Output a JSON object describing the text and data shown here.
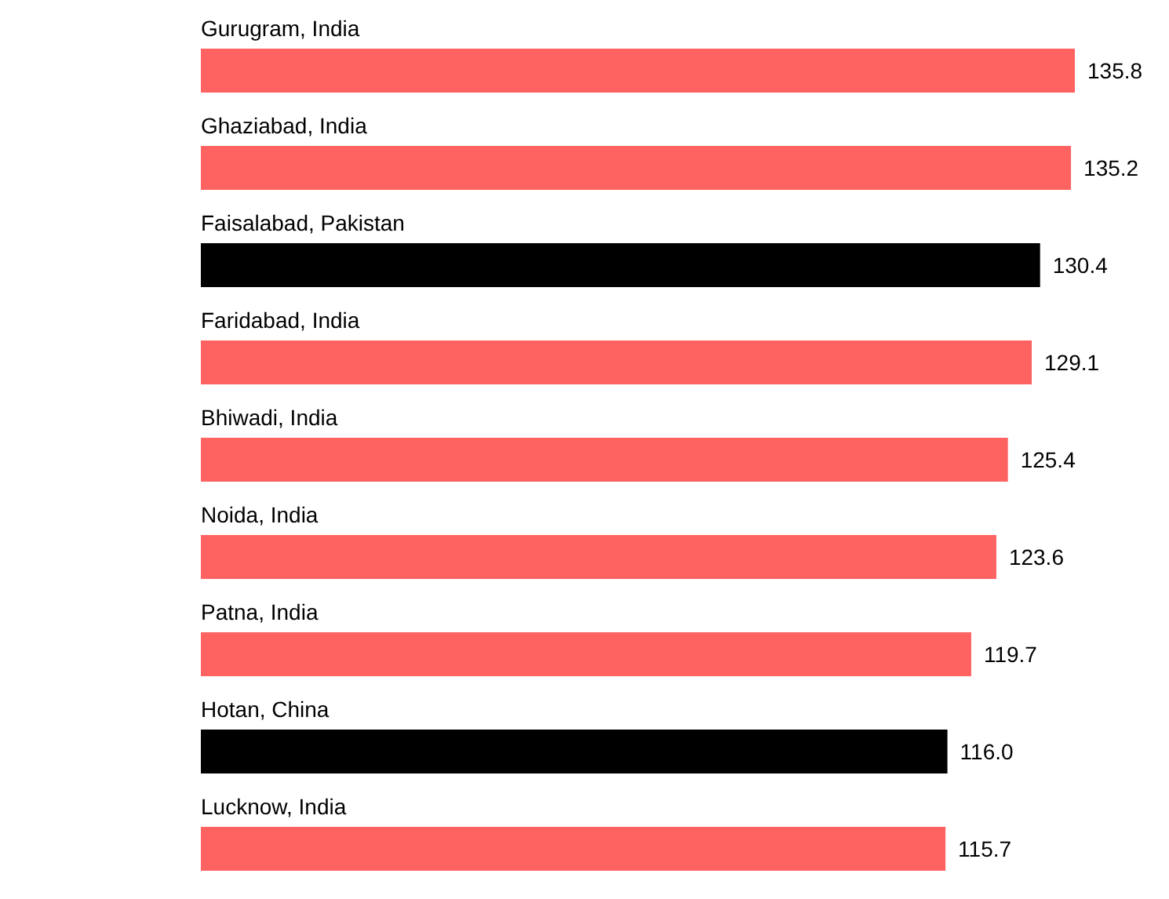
{
  "chart_data": {
    "type": "bar",
    "orientation": "horizontal",
    "categories": [
      "Gurugram, India",
      "Ghaziabad, India",
      "Faisalabad, Pakistan",
      "Faridabad, India",
      "Bhiwadi, India",
      "Noida, India",
      "Patna, India",
      "Hotan, China",
      "Lucknow, India"
    ],
    "values": [
      135.8,
      135.2,
      130.4,
      129.1,
      125.4,
      123.6,
      119.7,
      116.0,
      115.7
    ],
    "value_labels": [
      "135.8",
      "135.2",
      "130.4",
      "129.1",
      "125.4",
      "123.6",
      "119.7",
      "116.0",
      "115.7"
    ],
    "colors": [
      "#ff6361",
      "#ff6361",
      "#000000",
      "#ff6361",
      "#ff6361",
      "#ff6361",
      "#ff6361",
      "#000000",
      "#ff6361"
    ]
  }
}
